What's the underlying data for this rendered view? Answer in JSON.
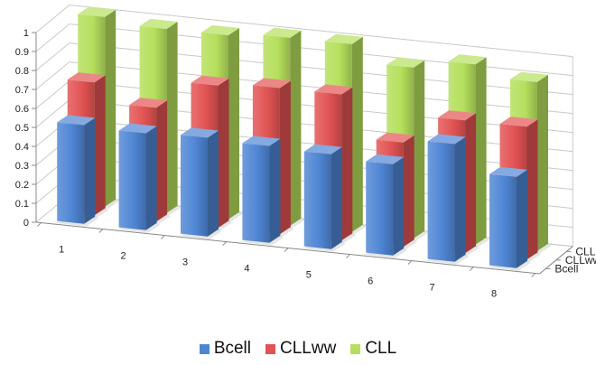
{
  "chart_data": {
    "type": "bar",
    "variant": "3d-column-depth",
    "categories": [
      "1",
      "2",
      "3",
      "4",
      "5",
      "6",
      "7",
      "8"
    ],
    "series": [
      {
        "name": "Bcell",
        "values": [
          0.52,
          0.51,
          0.52,
          0.51,
          0.5,
          0.48,
          0.62,
          0.48
        ],
        "color": "#4f86d4"
      },
      {
        "name": "CLLww",
        "values": [
          0.7,
          0.6,
          0.75,
          0.77,
          0.77,
          0.55,
          0.7,
          0.7
        ],
        "color": "#e25353"
      },
      {
        "name": "CLL",
        "values": [
          1.0,
          0.97,
          0.97,
          0.99,
          0.99,
          0.9,
          0.95,
          0.89
        ],
        "color": "#b5df5c"
      }
    ],
    "ylim": [
      0,
      1
    ],
    "yticks": [
      "0",
      "0.1",
      "0.2",
      "0.3",
      "0.4",
      "0.5",
      "0.6",
      "0.7",
      "0.8",
      "0.9",
      "1"
    ],
    "grid": true,
    "legend_position": "bottom"
  }
}
